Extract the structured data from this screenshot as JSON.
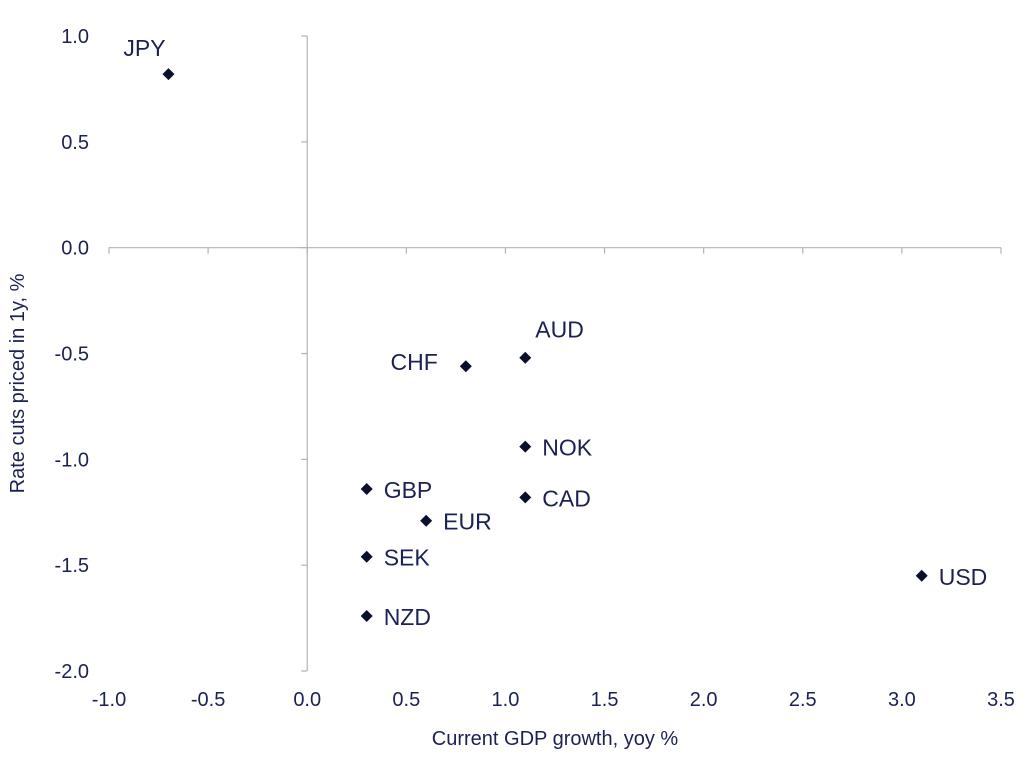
{
  "chart_data": {
    "type": "scatter",
    "title": "",
    "xlabel": "Current GDP growth, yoy %",
    "ylabel": "Rate cuts priced in 1y, %",
    "xlim": [
      -1.0,
      3.5
    ],
    "ylim": [
      -2.0,
      1.0
    ],
    "x_ticks": [
      "-1.0",
      "-0.5",
      "0.0",
      "0.5",
      "1.0",
      "1.5",
      "2.0",
      "2.5",
      "3.0",
      "3.5"
    ],
    "y_ticks": [
      "1.0",
      "0.5",
      "0.0",
      "-0.5",
      "-1.0",
      "-1.5",
      "-2.0"
    ],
    "grid": false,
    "legend": "none",
    "marker": "diamond",
    "colors": {
      "marker": "#0a0f2c",
      "text": "#1c2154",
      "axis": "#b3b3b3"
    },
    "points": [
      {
        "label": "JPY",
        "x": -0.7,
        "y": 0.82,
        "label_side": "above-left"
      },
      {
        "label": "AUD",
        "x": 1.1,
        "y": -0.52,
        "label_side": "above-right"
      },
      {
        "label": "CHF",
        "x": 0.8,
        "y": -0.56,
        "label_side": "left"
      },
      {
        "label": "NOK",
        "x": 1.1,
        "y": -0.94,
        "label_side": "right"
      },
      {
        "label": "GBP",
        "x": 0.3,
        "y": -1.14,
        "label_side": "right"
      },
      {
        "label": "CAD",
        "x": 1.1,
        "y": -1.18,
        "label_side": "right"
      },
      {
        "label": "EUR",
        "x": 0.6,
        "y": -1.29,
        "label_side": "right"
      },
      {
        "label": "SEK",
        "x": 0.3,
        "y": -1.46,
        "label_side": "right"
      },
      {
        "label": "USD",
        "x": 3.1,
        "y": -1.55,
        "label_side": "right"
      },
      {
        "label": "NZD",
        "x": 0.3,
        "y": -1.74,
        "label_side": "right"
      }
    ]
  }
}
